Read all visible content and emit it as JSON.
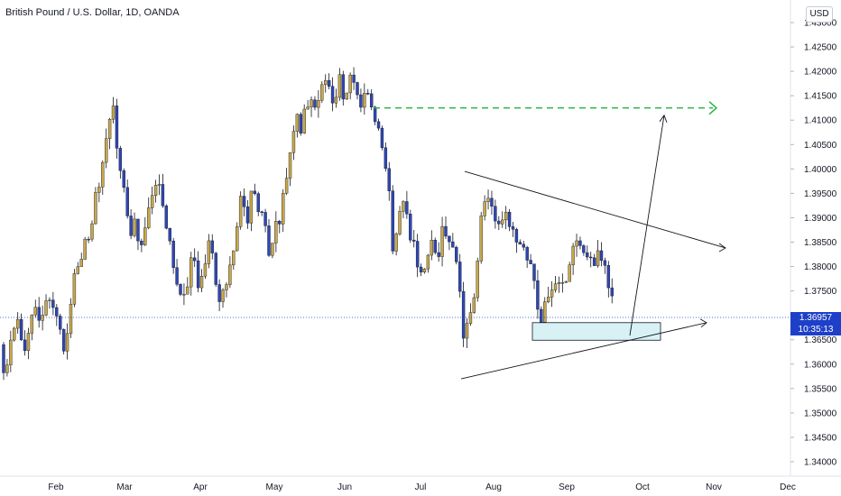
{
  "header": {
    "title": "British Pound / U.S. Dollar, 1D, OANDA",
    "currency_button": "USD"
  },
  "last_price": {
    "value": "1.36957",
    "countdown": "10:35:13",
    "color": "#1e40c8"
  },
  "colors": {
    "up": "#c8a84b",
    "down": "#2f46b4",
    "target": "#22b33d",
    "zone": "#d7f1f5",
    "line": "#131722"
  },
  "chart_data": {
    "type": "candlestick",
    "title": "British Pound / U.S. Dollar, 1D, OANDA",
    "y_axis": {
      "min": 1.335,
      "max": 1.43,
      "ticks": [
        1.43,
        1.425,
        1.42,
        1.415,
        1.41,
        1.405,
        1.4,
        1.395,
        1.39,
        1.385,
        1.38,
        1.375,
        1.37,
        1.365,
        1.36,
        1.355,
        1.35,
        1.345,
        1.34
      ],
      "tick_labels": [
        "1.43000",
        "1.42500",
        "1.42000",
        "1.41500",
        "1.41000",
        "1.40500",
        "1.40000",
        "1.39500",
        "1.39000",
        "1.38500",
        "1.38000",
        "1.37500",
        "1.37000",
        "1.36500",
        "1.36000",
        "1.35500",
        "1.35000",
        "1.34500",
        "1.34000"
      ]
    },
    "x_axis": {
      "labels": [
        "Feb",
        "Mar",
        "Apr",
        "May",
        "Jun",
        "Jul",
        "Aug",
        "Sep",
        "Oct",
        "Nov",
        "Dec"
      ]
    },
    "price_path": [
      [
        0,
        1.364
      ],
      [
        6,
        1.356
      ],
      [
        12,
        1.365
      ],
      [
        20,
        1.368
      ],
      [
        28,
        1.362
      ],
      [
        35,
        1.37
      ],
      [
        40,
        1.372
      ],
      [
        45,
        1.369
      ],
      [
        52,
        1.374
      ],
      [
        60,
        1.37
      ],
      [
        66,
        1.366
      ],
      [
        72,
        1.363
      ],
      [
        80,
        1.375
      ],
      [
        88,
        1.382
      ],
      [
        96,
        1.385
      ],
      [
        104,
        1.392
      ],
      [
        112,
        1.399
      ],
      [
        120,
        1.41
      ],
      [
        126,
        1.413
      ],
      [
        132,
        1.4
      ],
      [
        138,
        1.395
      ],
      [
        144,
        1.387
      ],
      [
        150,
        1.39
      ],
      [
        156,
        1.382
      ],
      [
        162,
        1.391
      ],
      [
        168,
        1.396
      ],
      [
        176,
        1.398
      ],
      [
        184,
        1.39
      ],
      [
        190,
        1.382
      ],
      [
        196,
        1.378
      ],
      [
        202,
        1.372
      ],
      [
        208,
        1.377
      ],
      [
        214,
        1.382
      ],
      [
        220,
        1.376
      ],
      [
        226,
        1.381
      ],
      [
        232,
        1.386
      ],
      [
        238,
        1.378
      ],
      [
        244,
        1.373
      ],
      [
        250,
        1.376
      ],
      [
        256,
        1.38
      ],
      [
        262,
        1.387
      ],
      [
        268,
        1.395
      ],
      [
        274,
        1.389
      ],
      [
        280,
        1.396
      ],
      [
        286,
        1.392
      ],
      [
        292,
        1.389
      ],
      [
        298,
        1.383
      ],
      [
        304,
        1.388
      ],
      [
        310,
        1.39
      ],
      [
        316,
        1.396
      ],
      [
        322,
        1.405
      ],
      [
        328,
        1.41
      ],
      [
        334,
        1.408
      ],
      [
        340,
        1.413
      ],
      [
        346,
        1.415
      ],
      [
        352,
        1.412
      ],
      [
        358,
        1.417
      ],
      [
        364,
        1.416
      ],
      [
        370,
        1.414
      ],
      [
        376,
        1.418
      ],
      [
        382,
        1.415
      ],
      [
        388,
        1.419
      ],
      [
        394,
        1.416
      ],
      [
        400,
        1.412
      ],
      [
        406,
        1.415
      ],
      [
        412,
        1.411
      ],
      [
        418,
        1.409
      ],
      [
        424,
        1.405
      ],
      [
        430,
        1.398
      ],
      [
        436,
        1.38
      ],
      [
        442,
        1.39
      ],
      [
        448,
        1.393
      ],
      [
        454,
        1.387
      ],
      [
        460,
        1.383
      ],
      [
        466,
        1.378
      ],
      [
        472,
        1.38
      ],
      [
        478,
        1.385
      ],
      [
        484,
        1.38
      ],
      [
        490,
        1.388
      ],
      [
        496,
        1.383
      ],
      [
        502,
        1.385
      ],
      [
        508,
        1.377
      ],
      [
        514,
        1.365
      ],
      [
        520,
        1.37
      ],
      [
        526,
        1.375
      ],
      [
        532,
        1.388
      ],
      [
        538,
        1.395
      ],
      [
        544,
        1.392
      ],
      [
        550,
        1.388
      ],
      [
        556,
        1.39
      ],
      [
        562,
        1.392
      ],
      [
        568,
        1.387
      ],
      [
        574,
        1.385
      ],
      [
        580,
        1.383
      ],
      [
        586,
        1.382
      ],
      [
        592,
        1.378
      ],
      [
        598,
        1.367
      ],
      [
        604,
        1.372
      ],
      [
        610,
        1.374
      ],
      [
        616,
        1.378
      ],
      [
        622,
        1.375
      ],
      [
        628,
        1.377
      ],
      [
        634,
        1.382
      ],
      [
        640,
        1.385
      ],
      [
        646,
        1.384
      ],
      [
        652,
        1.383
      ],
      [
        658,
        1.38
      ],
      [
        664,
        1.382
      ],
      [
        670,
        1.379
      ],
      [
        676,
        1.376
      ],
      [
        680,
        1.3695
      ]
    ],
    "last_price": 1.36957,
    "annotations": {
      "target_line_price": 1.4125,
      "demand_zone": {
        "low": 1.3649,
        "high": 1.3685
      },
      "triangle_upper": {
        "from_price": 1.3995,
        "to_price": 1.3838
      },
      "triangle_lower": {
        "from_price": 1.357,
        "to_price": 1.3685
      },
      "projection_arrow_top_price": 1.411
    }
  }
}
